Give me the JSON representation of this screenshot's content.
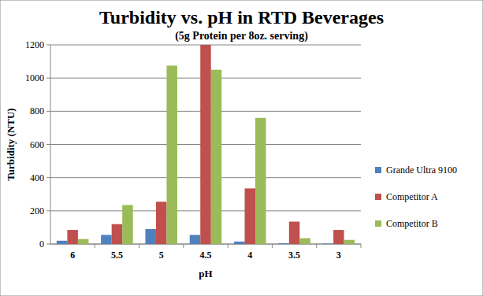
{
  "chart_data": {
    "type": "bar",
    "title": "Turbidity vs. pH in RTD Beverages",
    "subtitle": "(5g Protein per 8oz. serving)",
    "x_label": "pH",
    "y_label": "Turbidity (NTU)",
    "categories": [
      "6",
      "5.5",
      "5",
      "4.5",
      "4",
      "3.5",
      "3"
    ],
    "series": [
      {
        "name": "Grande Ultra 9100",
        "color": "#4f81bd",
        "values": [
          20,
          55,
          90,
          55,
          15,
          5,
          3
        ]
      },
      {
        "name": "Competitor A",
        "color": "#c0504d",
        "values": [
          85,
          120,
          255,
          1200,
          335,
          135,
          85
        ]
      },
      {
        "name": "Competitor B",
        "color": "#9bbb59",
        "values": [
          30,
          235,
          1075,
          1050,
          760,
          35,
          25
        ]
      }
    ],
    "ylim": [
      0,
      1200
    ],
    "yticks": [
      0,
      200,
      400,
      600,
      800,
      1000,
      1200
    ],
    "grid": true,
    "legend": "right"
  }
}
